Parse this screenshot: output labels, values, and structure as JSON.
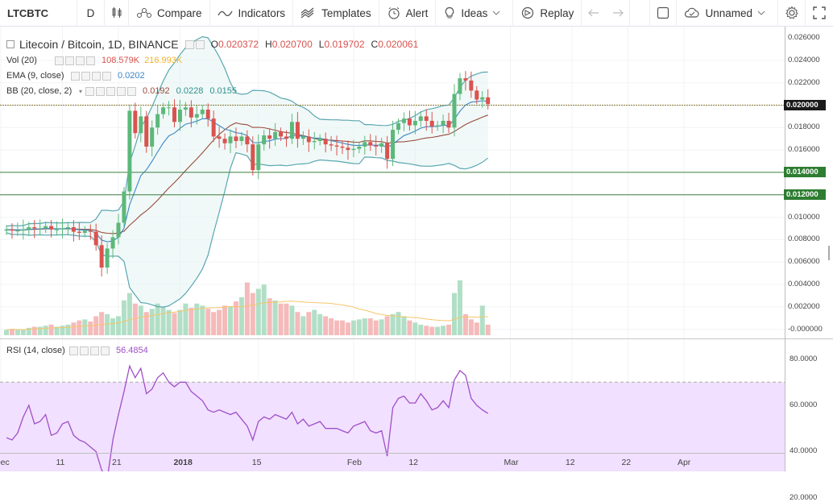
{
  "toolbar": {
    "symbol": "LTCBTC",
    "interval": "D",
    "compare": "Compare",
    "indicators": "Indicators",
    "templates": "Templates",
    "alert": "Alert",
    "ideas": "Ideas",
    "replay": "Replay",
    "layout_name": "Unnamed"
  },
  "legend": {
    "title": "Litecoin / Bitcoin, 1D, BINANCE",
    "o_label": "O",
    "o": "0.020372",
    "h_label": "H",
    "h": "0.020700",
    "l_label": "L",
    "l": "0.019702",
    "c_label": "C",
    "c": "0.020061",
    "vol_name": "Vol (20)",
    "vol_v1": "108.579K",
    "vol_v2": "216.993K",
    "ema_name": "EMA (9, close)",
    "ema_v": "0.0202",
    "bb_name": "BB (20, close, 2)",
    "bb_v1": "0.0192",
    "bb_v2": "0.0228",
    "bb_v3": "0.0155",
    "rsi_name": "RSI (14, close)",
    "rsi_v": "56.4854"
  },
  "price_axis": [
    "0.026000",
    "0.024000",
    "0.022000",
    "0.020000",
    "0.018000",
    "0.016000",
    "0.014000",
    "0.012000",
    "0.010000",
    "0.008000",
    "0.006000",
    "0.004000",
    "0.002000",
    "-0.000000"
  ],
  "price_tags": [
    {
      "value": "0.020000",
      "price": 0.02,
      "color": "#1a1a1a"
    },
    {
      "value": "0.014000",
      "price": 0.014,
      "color": "#2e7d32"
    },
    {
      "value": "0.012000",
      "price": 0.012,
      "color": "#2e7d32"
    }
  ],
  "rsi_axis": [
    "80.0000",
    "60.0000",
    "40.0000",
    "20.0000"
  ],
  "time_axis": [
    {
      "label": "Dec",
      "day": -1
    },
    {
      "label": "11",
      "day": 10
    },
    {
      "label": "21",
      "day": 20
    },
    {
      "label": "2018",
      "day": 31
    },
    {
      "label": "15",
      "day": 45
    },
    {
      "label": "Feb",
      "day": 62
    },
    {
      "label": "12",
      "day": 73
    },
    {
      "label": "Mar",
      "day": 90
    },
    {
      "label": "12",
      "day": 101
    },
    {
      "label": "22",
      "day": 111
    },
    {
      "label": "Apr",
      "day": 121
    }
  ],
  "colors": {
    "up": "#5cb87a",
    "down": "#d9534f",
    "bb": "#5aa6b0",
    "ema": "#3a86c8",
    "ma": "#9a4a3a",
    "rsi": "#a04fc8",
    "rsifill": "#f1e0ff"
  },
  "chart_data": {
    "type": "candlestick",
    "closes": [
      0.0089,
      0.0088,
      0.0088,
      0.0089,
      0.0091,
      0.009,
      0.009,
      0.0092,
      0.0089,
      0.0089,
      0.009,
      0.0091,
      0.0087,
      0.0086,
      0.0088,
      0.0087,
      0.0075,
      0.0055,
      0.0072,
      0.0082,
      0.0095,
      0.0123,
      0.0195,
      0.0175,
      0.019,
      0.0163,
      0.018,
      0.0192,
      0.0198,
      0.0198,
      0.0185,
      0.0196,
      0.0198,
      0.0189,
      0.0192,
      0.0196,
      0.0188,
      0.0172,
      0.017,
      0.0166,
      0.0172,
      0.0168,
      0.0172,
      0.0165,
      0.0142,
      0.0165,
      0.0173,
      0.017,
      0.0176,
      0.0172,
      0.017,
      0.0185,
      0.017,
      0.0172,
      0.0167,
      0.0168,
      0.017,
      0.0165,
      0.0164,
      0.0163,
      0.0162,
      0.016,
      0.0161,
      0.0163,
      0.0167,
      0.0164,
      0.0163,
      0.0166,
      0.0152,
      0.0178,
      0.0184,
      0.0188,
      0.0182,
      0.0186,
      0.019,
      0.0186,
      0.0181,
      0.0182,
      0.0186,
      0.018,
      0.021,
      0.0224,
      0.0222,
      0.0213,
      0.0205,
      0.0207,
      0.0201
    ],
    "volumes": [
      5,
      6,
      5,
      5,
      7,
      8,
      8,
      9,
      10,
      8,
      9,
      10,
      12,
      14,
      15,
      13,
      18,
      22,
      20,
      16,
      18,
      33,
      40,
      30,
      28,
      22,
      25,
      30,
      27,
      24,
      21,
      24,
      30,
      26,
      30,
      28,
      25,
      22,
      24,
      28,
      27,
      32,
      36,
      50,
      40,
      44,
      48,
      35,
      33,
      30,
      30,
      28,
      22,
      18,
      22,
      24,
      20,
      18,
      16,
      14,
      14,
      12,
      14,
      15,
      16,
      16,
      14,
      15,
      18,
      20,
      22,
      18,
      14,
      12,
      10,
      9,
      8,
      8,
      9,
      10,
      40,
      52,
      20,
      15,
      12,
      28,
      10
    ],
    "rsi": [
      46,
      45,
      48,
      55,
      60,
      52,
      53,
      56,
      47,
      48,
      52,
      53,
      47,
      45,
      44,
      42,
      40,
      32,
      28,
      45,
      56,
      66,
      77,
      72,
      76,
      65,
      67,
      72,
      74,
      70,
      68,
      70,
      70,
      66,
      64,
      62,
      58,
      57,
      58,
      57,
      56,
      57,
      54,
      51,
      45,
      53,
      55,
      54,
      56,
      55,
      54,
      57,
      52,
      54,
      51,
      52,
      53,
      50,
      50,
      50,
      49,
      48,
      51,
      52,
      53,
      49,
      48,
      49,
      38,
      59,
      63,
      64,
      61,
      61,
      65,
      62,
      58,
      59,
      62,
      59,
      71,
      75,
      73,
      63,
      60,
      58,
      56.4854
    ]
  }
}
